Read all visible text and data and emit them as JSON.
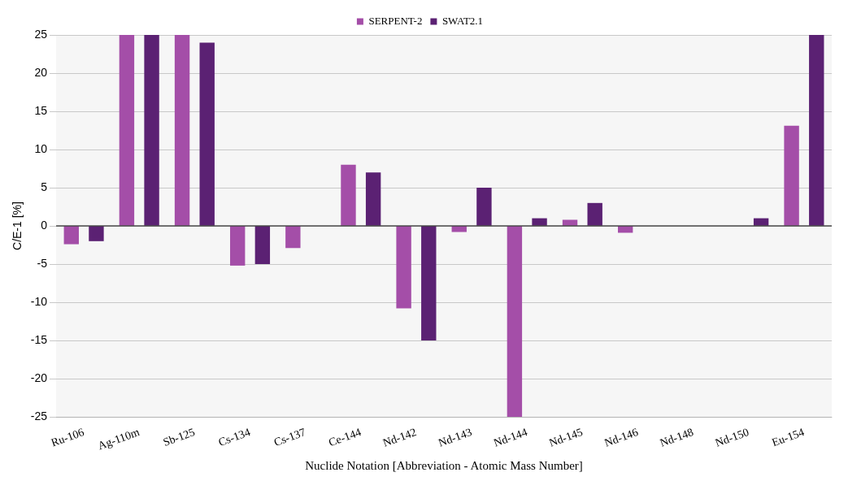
{
  "chart_data": {
    "type": "bar",
    "xlabel": "Nuclide Notation [Abbreviation - Atomic Mass Number]",
    "ylabel": "C/E-1 [%]",
    "categories": [
      "Ru-106",
      "Ag-110m",
      "Sb-125",
      "Cs-134",
      "Cs-137",
      "Ce-144",
      "Nd-142",
      "Nd-143",
      "Nd-144",
      "Nd-145",
      "Nd-146",
      "Nd-148",
      "Nd-150",
      "Eu-154"
    ],
    "series": [
      {
        "name": "SERPENT-2",
        "color": "#a44ea8",
        "values": [
          -2.4,
          25,
          25,
          -5.2,
          -2.9,
          8,
          -10.8,
          -0.8,
          -25,
          0.8,
          -0.9,
          0,
          0,
          13.1
        ]
      },
      {
        "name": "SWAT2.1",
        "color": "#5b2173",
        "values": [
          -2,
          25,
          24,
          -5,
          0,
          7,
          -15,
          5,
          1,
          3,
          0,
          0,
          1,
          25
        ]
      }
    ],
    "ylim": [
      -25,
      25
    ],
    "yticks": [
      -25,
      -20,
      -15,
      -10,
      -5,
      0,
      5,
      10,
      15,
      20,
      25
    ],
    "grid": "y",
    "legend": "top",
    "ref_lines": [
      {
        "axis": "y",
        "value": 0,
        "color": "#000000"
      }
    ]
  }
}
